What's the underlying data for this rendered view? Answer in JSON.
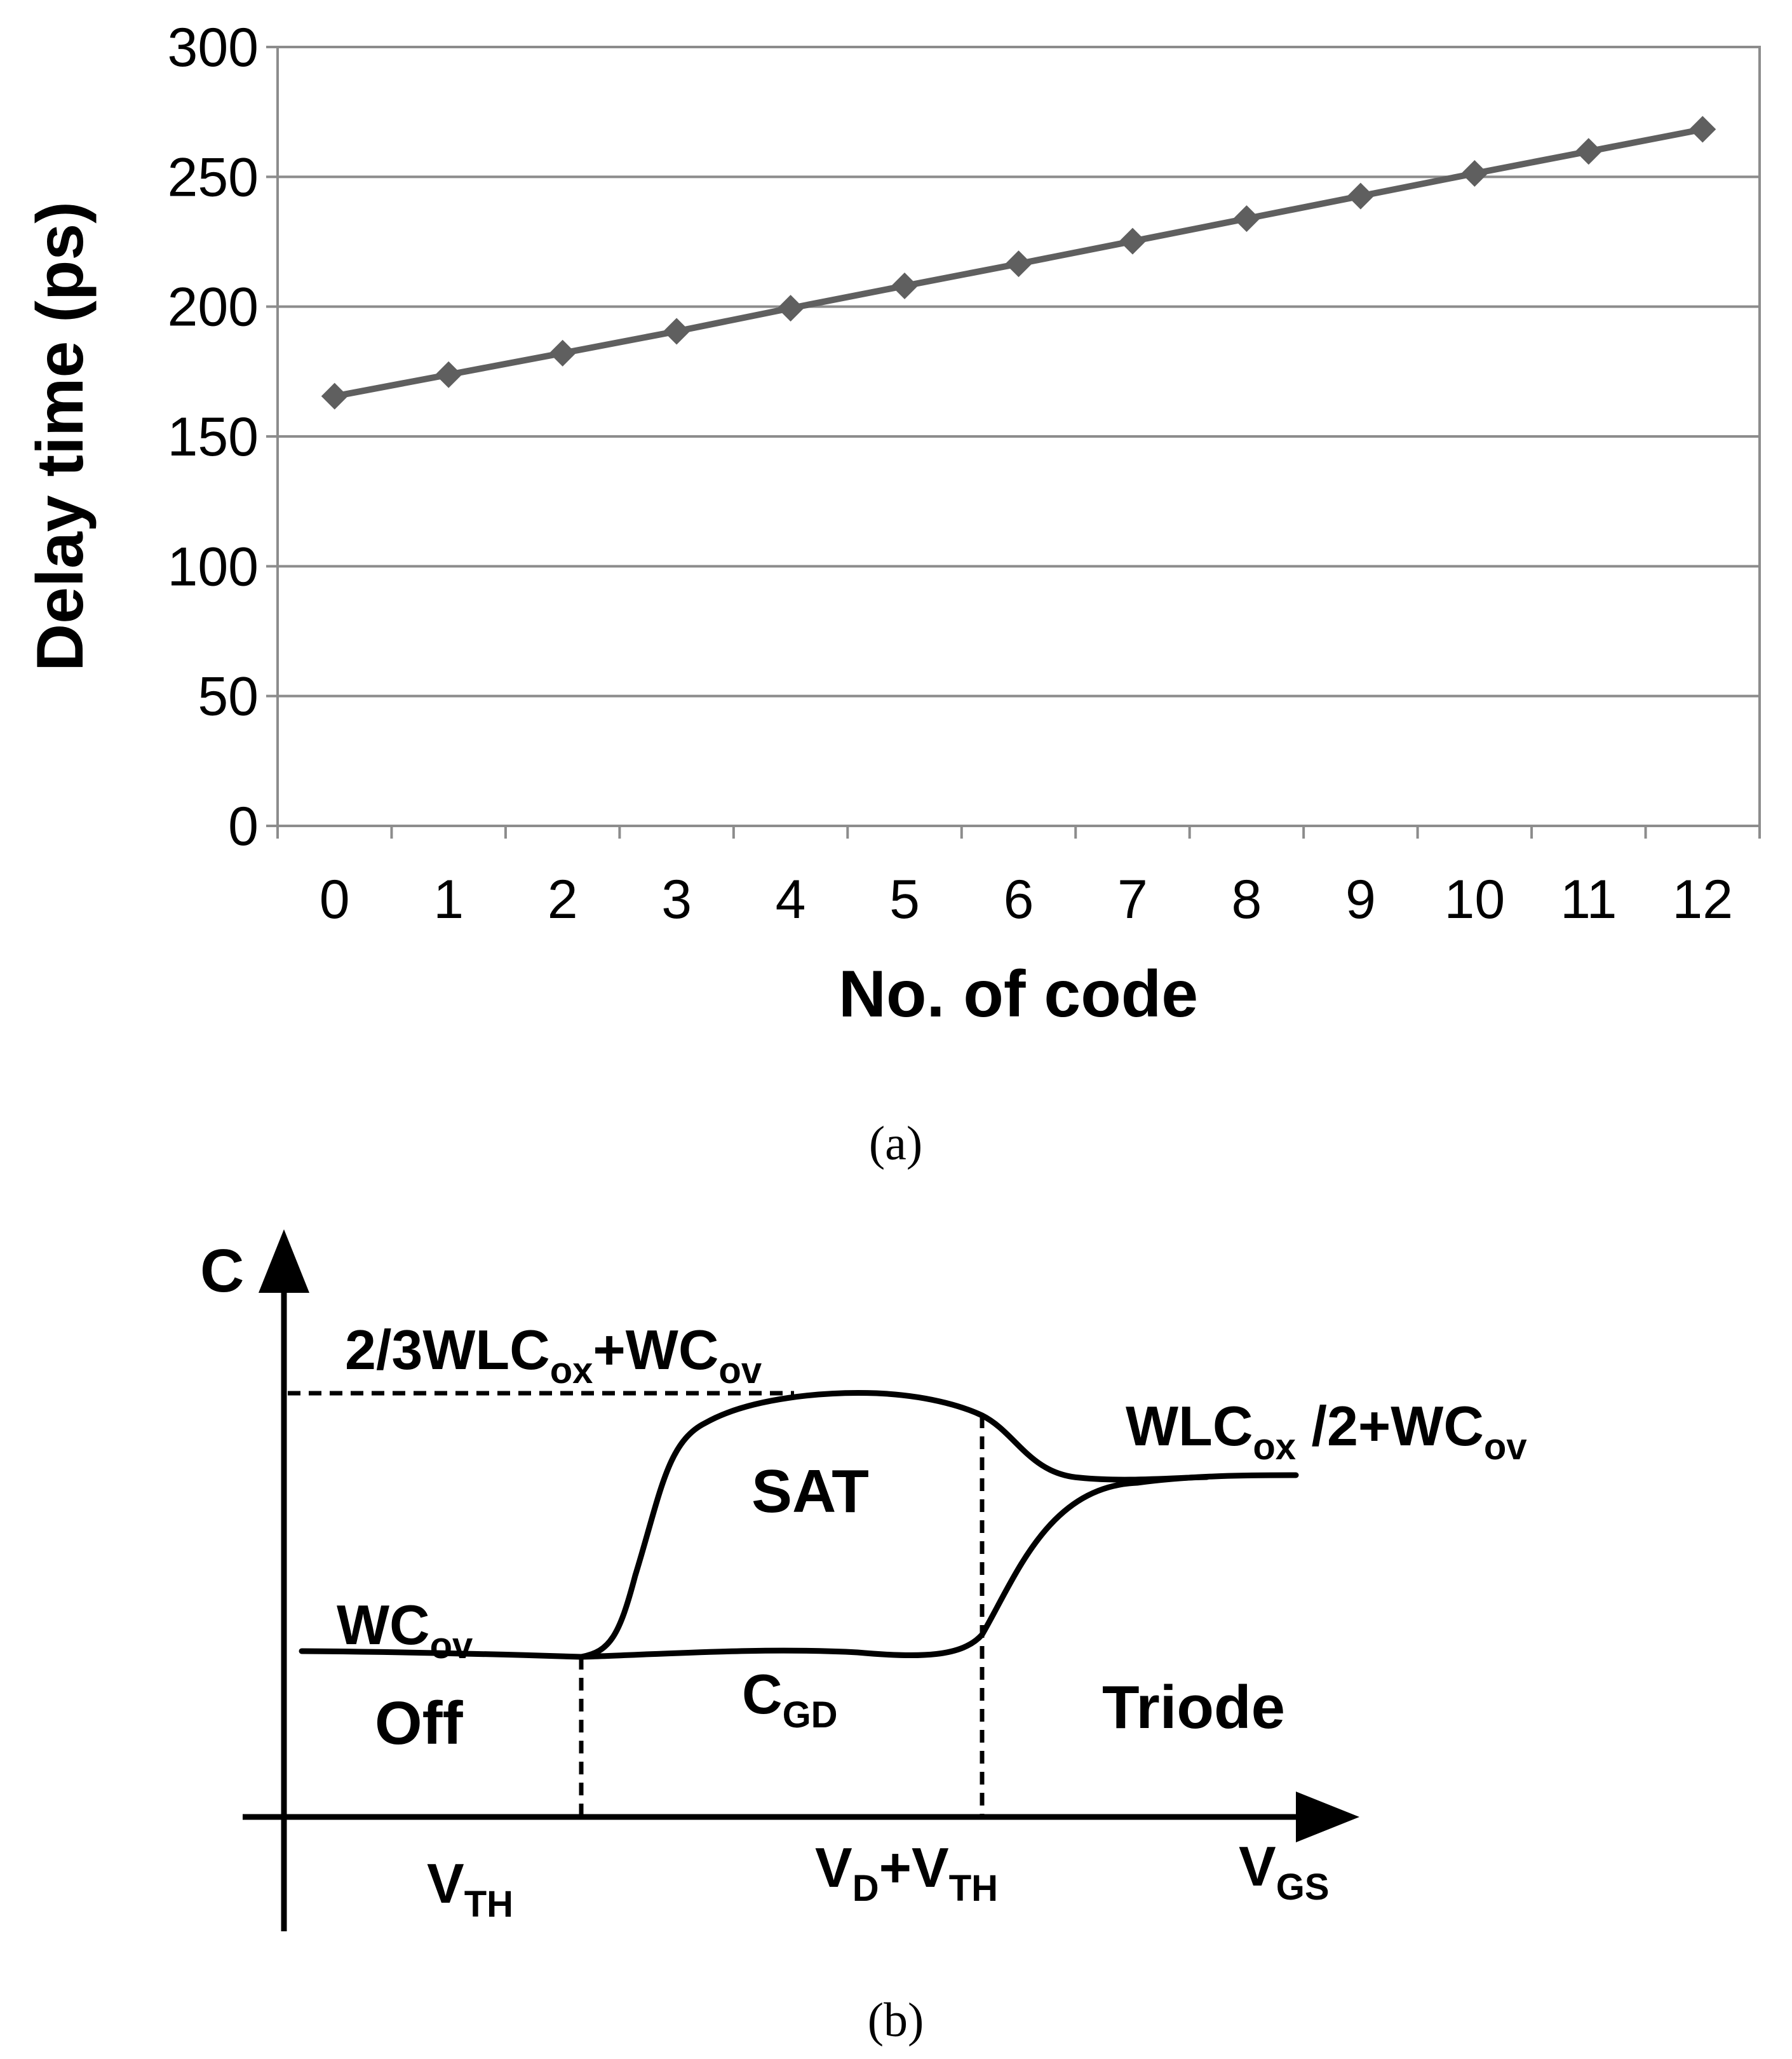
{
  "chart_data": [
    {
      "type": "line",
      "title": "",
      "xlabel": "No. of code",
      "ylabel": "Delay time (ps)",
      "ylim": [
        0,
        300
      ],
      "yticks": [
        0,
        50,
        100,
        150,
        200,
        250,
        300
      ],
      "categories": [
        "0",
        "1",
        "2",
        "3",
        "4",
        "5",
        "6",
        "7",
        "8",
        "9",
        "10",
        "11",
        "12"
      ],
      "series": [
        {
          "name": "Delay time",
          "marker": "diamond",
          "values": [
            165.5,
            173.8,
            182.1,
            190.5,
            199.4,
            208.0,
            216.5,
            225.2,
            233.9,
            242.6,
            251.3,
            259.8,
            268.3
          ]
        }
      ],
      "grid": true,
      "legend": "none",
      "caption": "(a)"
    },
    {
      "type": "diagram",
      "description_role": "C vs VGS capacitance regions",
      "axis_y_label": "C",
      "axis_x_label": {
        "main": "V",
        "sub": "GS"
      },
      "vth_label": {
        "main": "V",
        "sub": "TH"
      },
      "vd_vth_label": {
        "a": "V",
        "a_sub": "D",
        "plus": "+V",
        "b_sub": "TH"
      },
      "top_level_label": {
        "p1": "2/3WLC",
        "s1": "ox",
        "p2": "+WC",
        "s2": "ov"
      },
      "right_level_label": {
        "p1": "WLC",
        "s1": "ox",
        "p2": " /2+WC",
        "s2": "ov"
      },
      "left_level_label": {
        "p1": "WC",
        "s1": "ov"
      },
      "cgd_label": {
        "p1": "C",
        "s1": "GD"
      },
      "region_sat": "SAT",
      "region_off": "Off",
      "region_triode": "Triode",
      "caption": "(b)"
    }
  ],
  "colors": {
    "line": "#5f5f5f",
    "grid": "#8c8c8c",
    "ink": "#000000"
  }
}
